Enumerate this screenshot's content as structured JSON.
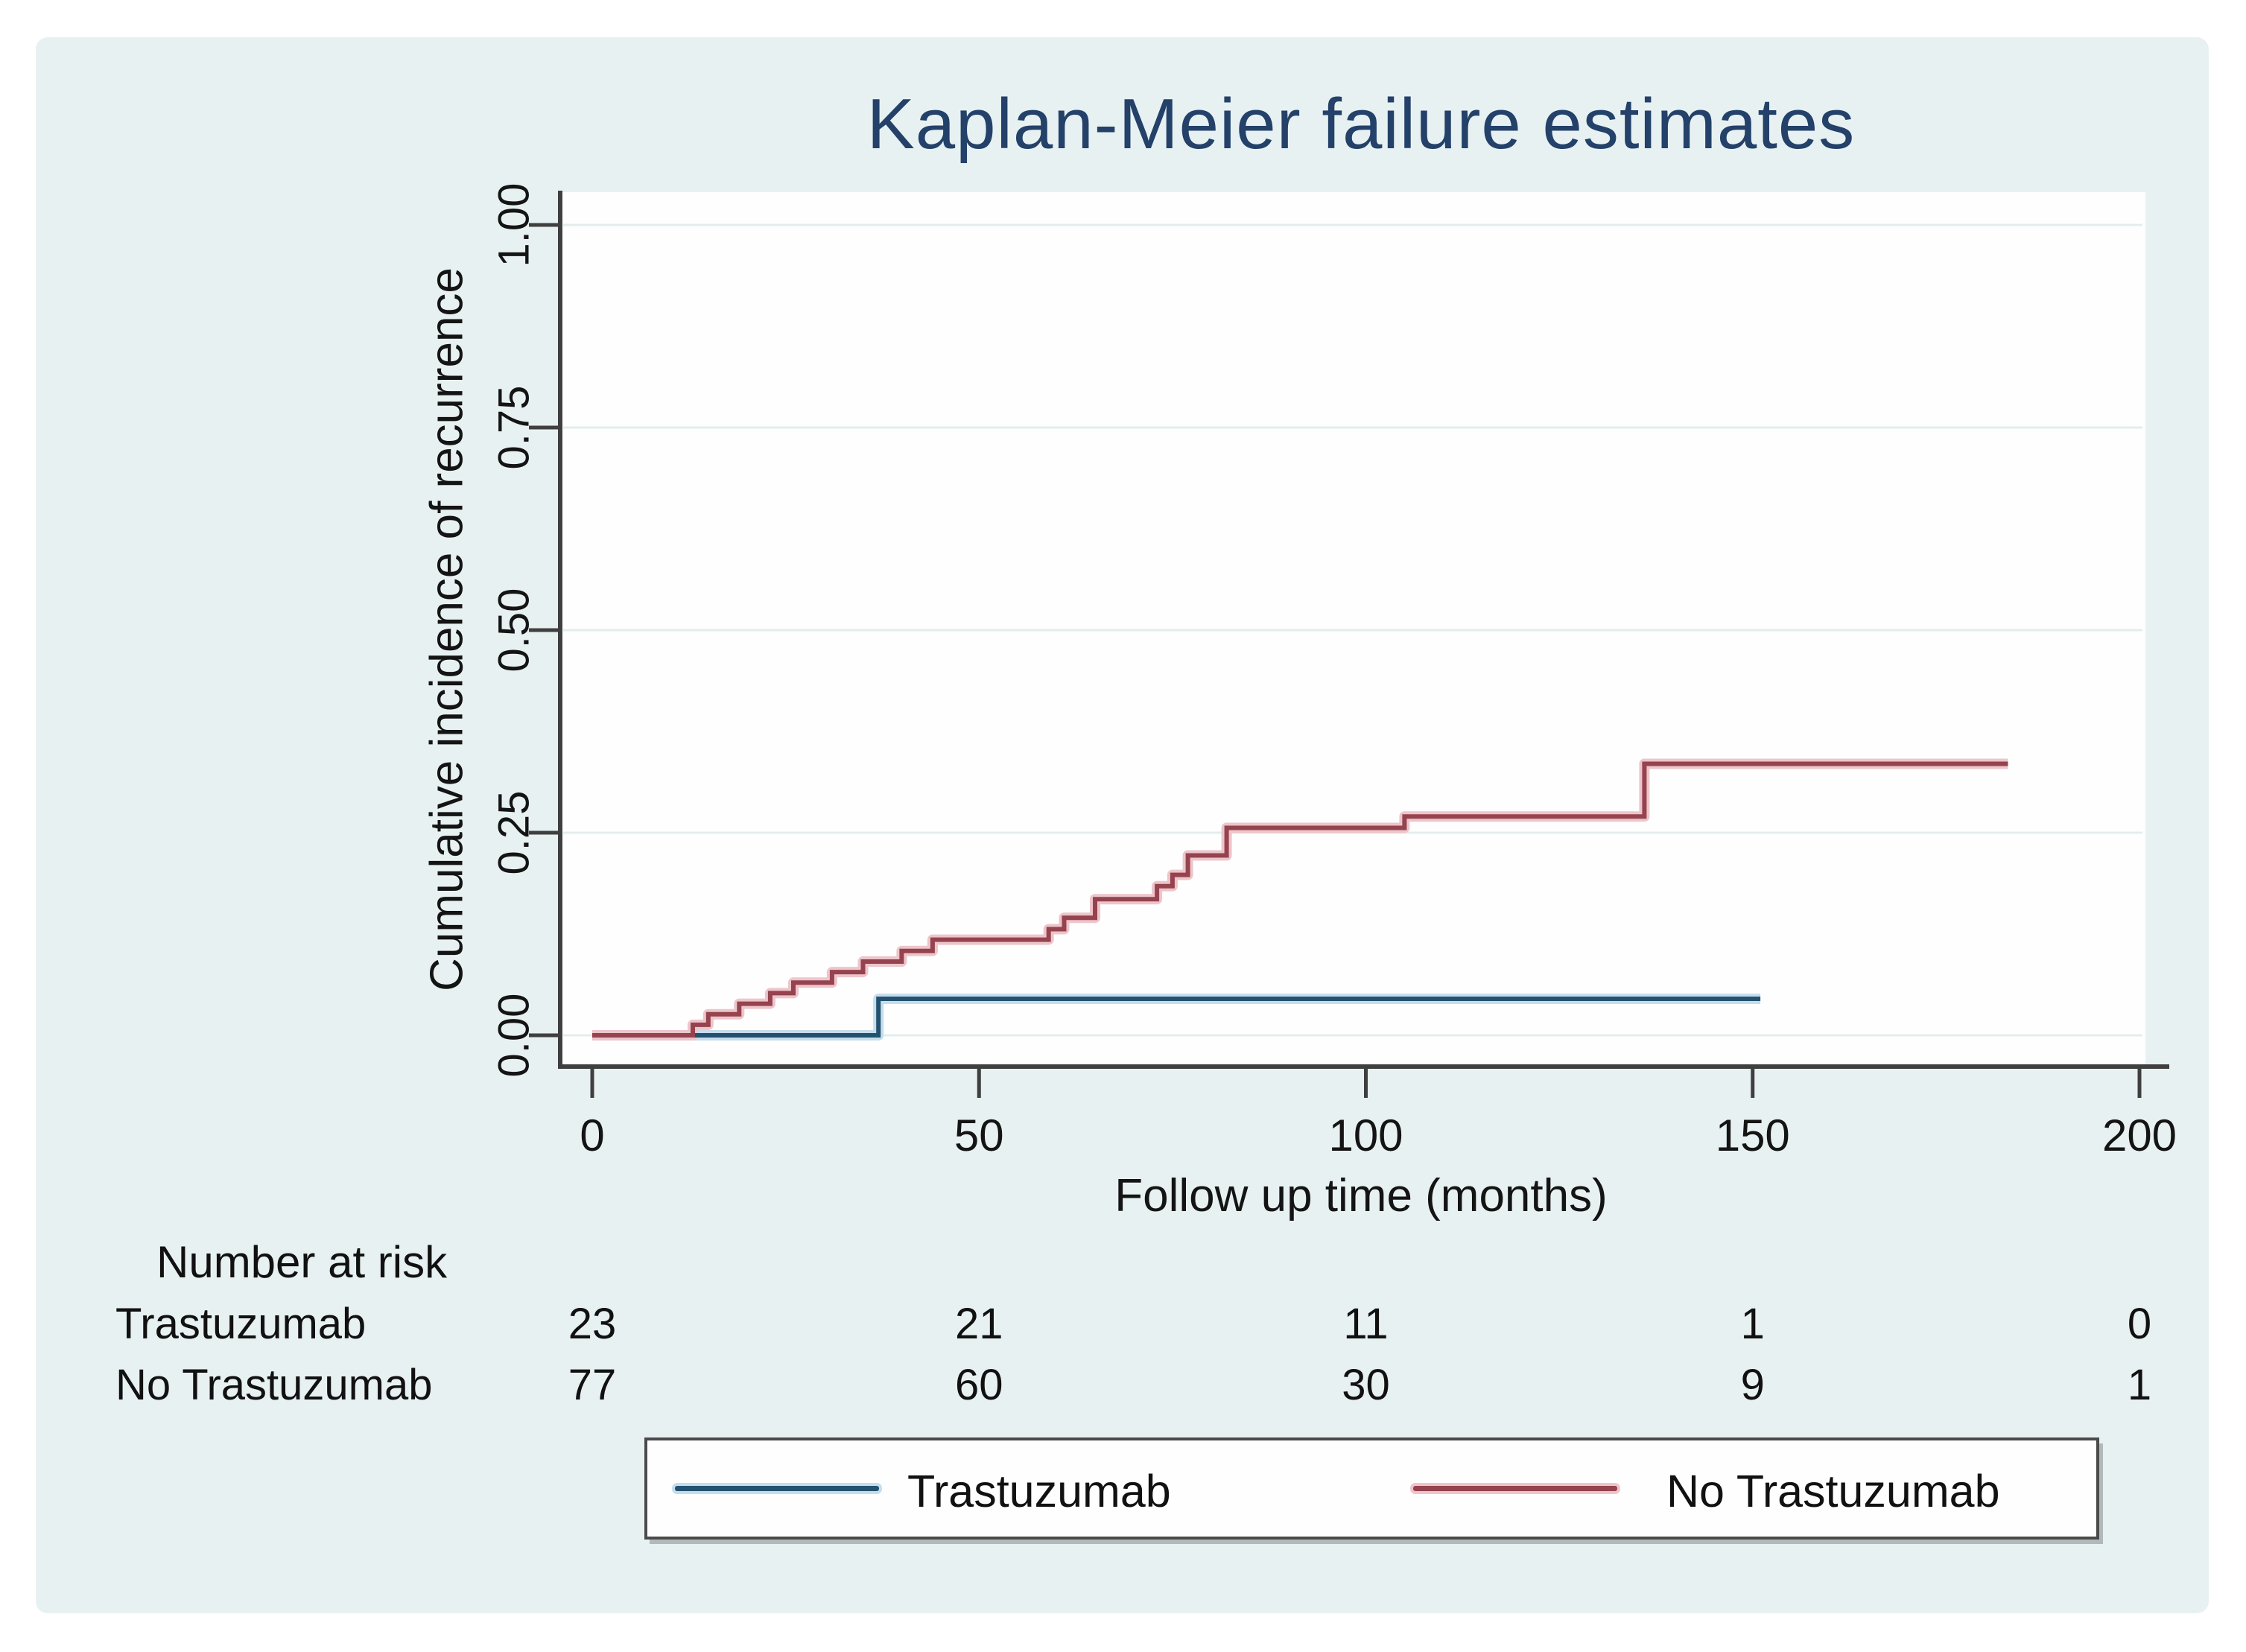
{
  "title": "Kaplan-Meier failure estimates",
  "chart_data": {
    "type": "line",
    "subtype": "kaplan-meier-failure-step",
    "title": "Kaplan-Meier failure estimates",
    "xlabel": "Follow up time (months)",
    "ylabel": "Cumulative incidence of recurrence",
    "xlim": [
      0,
      208
    ],
    "ylim": [
      0,
      1.0
    ],
    "x_ticks": [
      0,
      50,
      100,
      150,
      200
    ],
    "y_ticks": [
      0,
      0.25,
      0.5,
      0.75,
      1
    ],
    "y_tick_labels": [
      "0.00",
      "0.25",
      "0.50",
      "0.75",
      "1.00"
    ],
    "grid": true,
    "legend_position": "bottom",
    "series": [
      {
        "name": "Trastuzumab",
        "color": "#235270",
        "halo_color": "#c6ddec",
        "end_month": 151,
        "steps": [
          [
            0,
            0
          ],
          [
            37,
            0.045
          ]
        ]
      },
      {
        "name": "No Trastuzumab",
        "color": "#95434e",
        "halo_color": "#edc5cb",
        "end_month": 183,
        "steps": [
          [
            0,
            0
          ],
          [
            13,
            0.013
          ],
          [
            15,
            0.026
          ],
          [
            19,
            0.039
          ],
          [
            23,
            0.052
          ],
          [
            26,
            0.065
          ],
          [
            31,
            0.078
          ],
          [
            35,
            0.091
          ],
          [
            40,
            0.104
          ],
          [
            44,
            0.118
          ],
          [
            59,
            0.131
          ],
          [
            61,
            0.145
          ],
          [
            65,
            0.168
          ],
          [
            73,
            0.184
          ],
          [
            75,
            0.198
          ],
          [
            77,
            0.222
          ],
          [
            82,
            0.256
          ],
          [
            105,
            0.27
          ],
          [
            136,
            0.335
          ]
        ]
      }
    ]
  },
  "risk_table": {
    "header": "Number at risk",
    "time_points": [
      0,
      50,
      100,
      150,
      200
    ],
    "rows": [
      {
        "label": "Trastuzumab",
        "values": [
          "23",
          "21",
          "11",
          "1",
          "0"
        ]
      },
      {
        "label": "No Trastuzumab",
        "values": [
          "77",
          "60",
          "30",
          "9",
          "1"
        ]
      }
    ]
  },
  "legend": {
    "entries": [
      {
        "label": "Trastuzumab",
        "color": "#235270",
        "halo_color": "#c6ddec"
      },
      {
        "label": "No Trastuzumab",
        "color": "#95434e",
        "halo_color": "#edc5cb"
      }
    ]
  },
  "colors": {
    "page_bg": "#ffffff",
    "card_bg": "#e8f1f2",
    "plot_bg": "#fefefe",
    "grid": "#e3edee",
    "axis": "#3f3f3f",
    "title": "#234169",
    "text": "#141414"
  }
}
